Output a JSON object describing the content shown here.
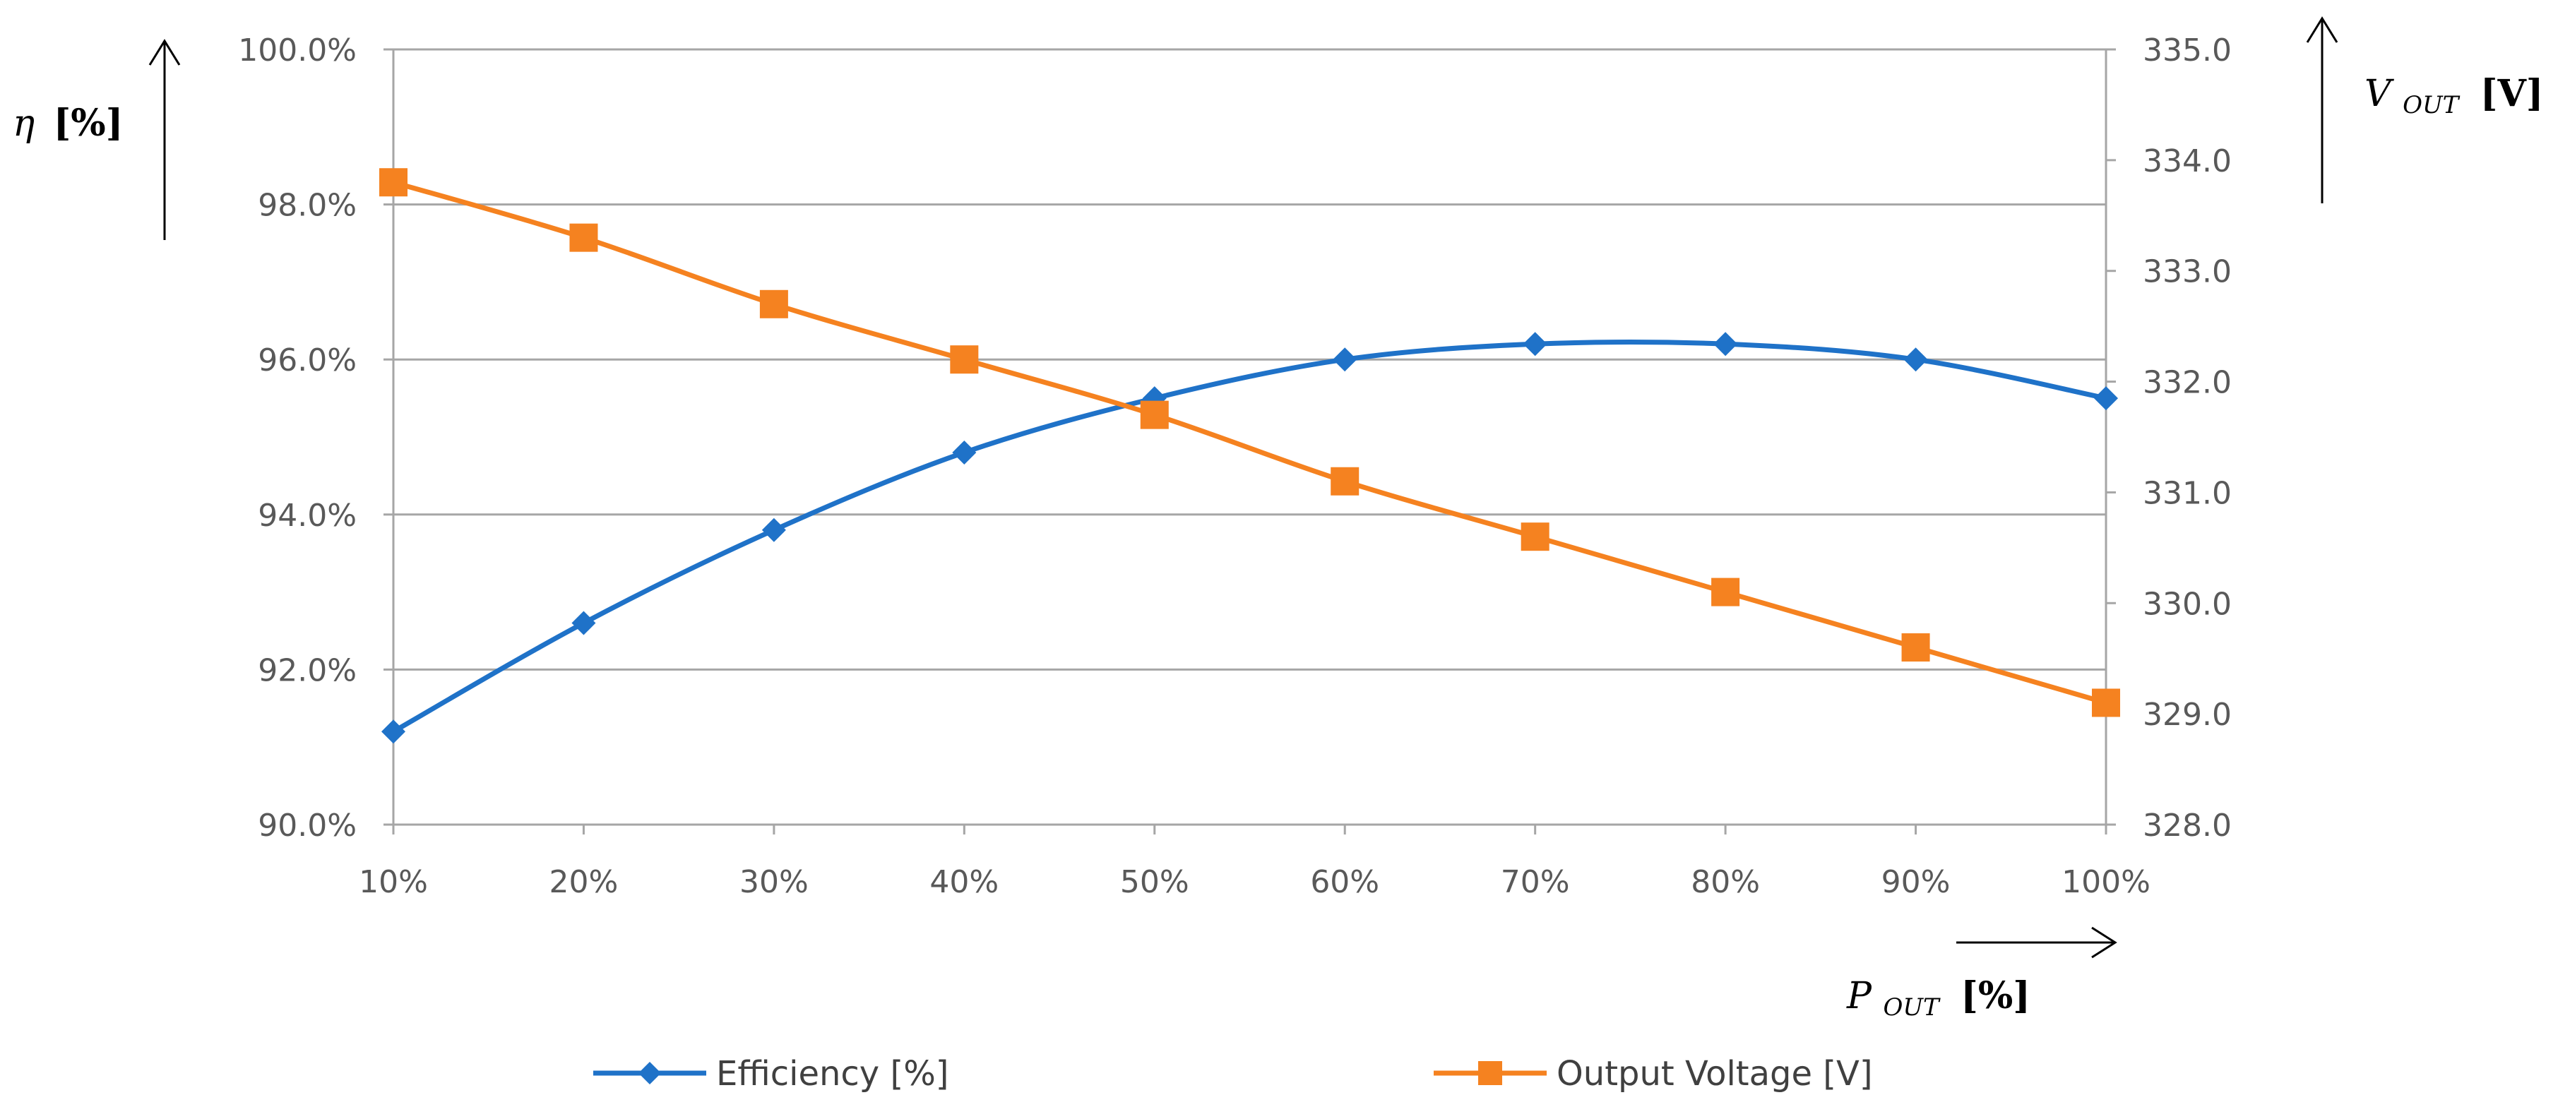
{
  "chart_data": {
    "type": "line",
    "title": "",
    "x": [
      "10%",
      "20%",
      "30%",
      "40%",
      "50%",
      "60%",
      "70%",
      "80%",
      "90%",
      "100%"
    ],
    "series": [
      {
        "name": "Efficiency [%]",
        "axis": "left",
        "color": "#1F72C8",
        "marker": "diamond",
        "values": [
          91.2,
          92.6,
          93.8,
          94.8,
          95.5,
          96.0,
          96.2,
          96.2,
          96.0,
          95.5
        ]
      },
      {
        "name": "Output Voltage [V]",
        "axis": "right",
        "color": "#F58220",
        "marker": "square",
        "values": [
          333.8,
          333.3,
          332.7,
          332.2,
          331.7,
          331.1,
          330.6,
          330.1,
          329.6,
          329.1
        ]
      }
    ],
    "y_left": {
      "label_symbol": "η",
      "label_unit": "[%]",
      "ylim": [
        90.0,
        100.0
      ],
      "ticks": [
        "90.0%",
        "92.0%",
        "94.0%",
        "96.0%",
        "98.0%",
        "100.0%"
      ]
    },
    "y_right": {
      "label_symbol": "V",
      "label_subscript": "OUT",
      "label_unit": "[V]",
      "ylim": [
        328.0,
        335.0
      ],
      "ticks": [
        "328.0",
        "329.0",
        "330.0",
        "331.0",
        "332.0",
        "333.0",
        "334.0",
        "335.0"
      ]
    },
    "x_axis": {
      "label_symbol": "P",
      "label_subscript": "OUT",
      "label_unit": "[%]"
    },
    "grid": true,
    "legend": "bottom"
  },
  "colors": {
    "efficiency": "#1F72C8",
    "voltage": "#F58220",
    "grid": "#A6A6A6",
    "axis": "#A6A6A6"
  }
}
